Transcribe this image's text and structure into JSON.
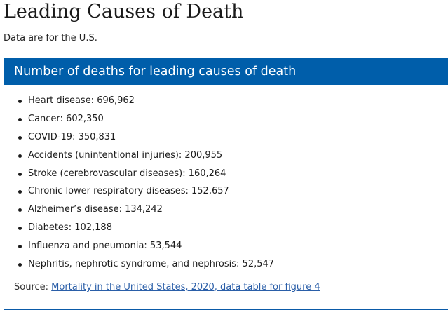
{
  "page": {
    "title": "Leading Causes of Death",
    "subtitle": "Data are for the U.S."
  },
  "card": {
    "header": "Number of deaths for leading causes of death",
    "items": [
      "Heart disease: 696,962",
      "Cancer: 602,350",
      "COVID-19: 350,831",
      "Accidents (unintentional injuries): 200,955",
      "Stroke (cerebrovascular diseases): 160,264",
      "Chronic lower respiratory diseases: 152,657",
      "Alzheimer’s disease: 134,242",
      "Diabetes: 102,188",
      "Influenza and pneumonia: 53,544",
      "Nephritis, nephrotic syndrome, and nephrosis: 52,547"
    ],
    "source_label": "Source:",
    "source_link": "Mortality in the United States, 2020, data table for figure 4"
  },
  "colors": {
    "header_background": "#005eaa",
    "link": "#2a5ea8"
  }
}
